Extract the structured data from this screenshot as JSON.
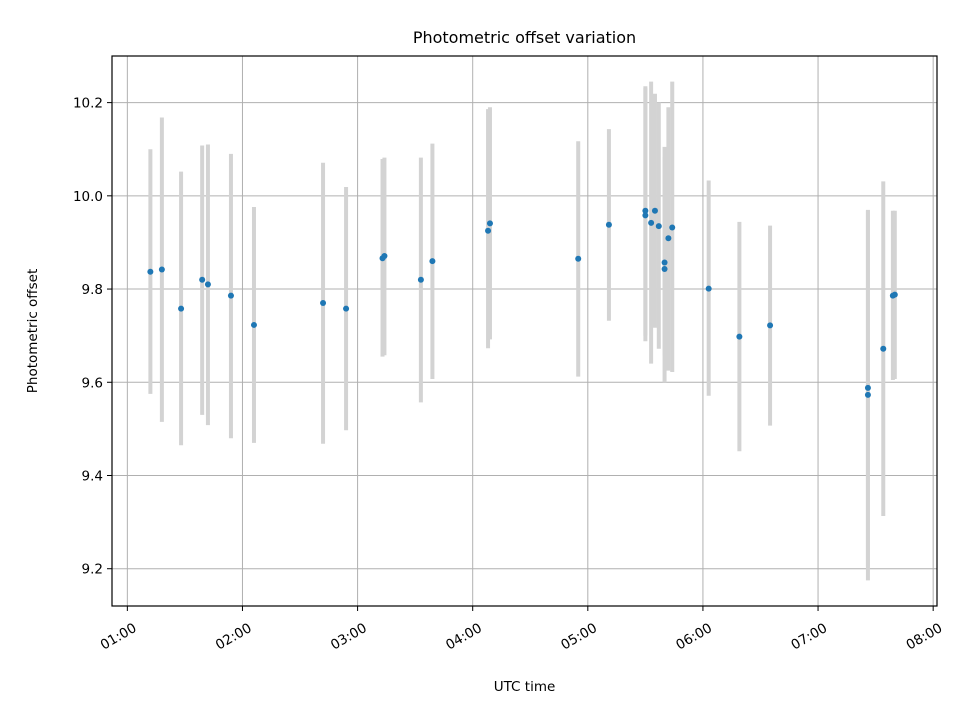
{
  "chart_data": {
    "type": "scatter",
    "title": "Photometric offset variation",
    "xlabel": "UTC time",
    "ylabel": "Photometric offset",
    "xlim": [
      "00:52",
      "08:02"
    ],
    "ylim": [
      9.12,
      10.3
    ],
    "x_ticks": [
      "01:00",
      "02:00",
      "03:00",
      "04:00",
      "05:00",
      "06:00",
      "07:00",
      "08:00"
    ],
    "y_ticks": [
      "9.2",
      "9.4",
      "9.6",
      "9.8",
      "10.0",
      "10.2"
    ],
    "grid": true,
    "colors": {
      "point": "#1f77b4",
      "errorbar": "#d3d3d3",
      "grid": "#b0b0b0"
    },
    "points": [
      {
        "x": "01:12",
        "y": 9.837,
        "ylow": 9.575,
        "yhigh": 10.1
      },
      {
        "x": "01:18",
        "y": 9.842,
        "ylow": 9.515,
        "yhigh": 10.168
      },
      {
        "x": "01:28",
        "y": 9.758,
        "ylow": 9.465,
        "yhigh": 10.052
      },
      {
        "x": "01:39",
        "y": 9.82,
        "ylow": 9.53,
        "yhigh": 10.108
      },
      {
        "x": "01:42",
        "y": 9.81,
        "ylow": 9.508,
        "yhigh": 10.11
      },
      {
        "x": "01:54",
        "y": 9.786,
        "ylow": 9.48,
        "yhigh": 10.09
      },
      {
        "x": "02:06",
        "y": 9.723,
        "ylow": 9.47,
        "yhigh": 9.976
      },
      {
        "x": "02:42",
        "y": 9.77,
        "ylow": 9.468,
        "yhigh": 10.071
      },
      {
        "x": "02:54",
        "y": 9.758,
        "ylow": 9.497,
        "yhigh": 10.019
      },
      {
        "x": "03:13",
        "y": 9.866,
        "ylow": 9.655,
        "yhigh": 10.079
      },
      {
        "x": "03:14",
        "y": 9.871,
        "ylow": 9.658,
        "yhigh": 10.082
      },
      {
        "x": "03:33",
        "y": 9.82,
        "ylow": 9.557,
        "yhigh": 10.082
      },
      {
        "x": "03:39",
        "y": 9.86,
        "ylow": 9.607,
        "yhigh": 10.112
      },
      {
        "x": "04:08",
        "y": 9.925,
        "ylow": 9.673,
        "yhigh": 10.186
      },
      {
        "x": "04:09",
        "y": 9.941,
        "ylow": 9.692,
        "yhigh": 10.19
      },
      {
        "x": "04:55",
        "y": 9.865,
        "ylow": 9.612,
        "yhigh": 10.117
      },
      {
        "x": "05:11",
        "y": 9.938,
        "ylow": 9.732,
        "yhigh": 10.143
      },
      {
        "x": "05:30",
        "y": 9.958,
        "ylow": 9.688,
        "yhigh": 10.235
      },
      {
        "x": "05:30",
        "y": 9.968,
        "ylow": 9.7,
        "yhigh": 10.231
      },
      {
        "x": "05:33",
        "y": 9.942,
        "ylow": 9.64,
        "yhigh": 10.245
      },
      {
        "x": "05:35",
        "y": 9.968,
        "ylow": 9.717,
        "yhigh": 10.219
      },
      {
        "x": "05:37",
        "y": 9.935,
        "ylow": 9.672,
        "yhigh": 10.2
      },
      {
        "x": "05:40",
        "y": 9.857,
        "ylow": 9.658,
        "yhigh": 10.105
      },
      {
        "x": "05:40",
        "y": 9.843,
        "ylow": 9.6,
        "yhigh": 10.082
      },
      {
        "x": "05:42",
        "y": 9.909,
        "ylow": 9.625,
        "yhigh": 10.19
      },
      {
        "x": "05:44",
        "y": 9.932,
        "ylow": 9.622,
        "yhigh": 10.245
      },
      {
        "x": "06:03",
        "y": 9.801,
        "ylow": 9.571,
        "yhigh": 10.033
      },
      {
        "x": "06:19",
        "y": 9.698,
        "ylow": 9.452,
        "yhigh": 9.944
      },
      {
        "x": "06:35",
        "y": 9.722,
        "ylow": 9.507,
        "yhigh": 9.936
      },
      {
        "x": "07:26",
        "y": 9.588,
        "ylow": 9.205,
        "yhigh": 9.97
      },
      {
        "x": "07:26",
        "y": 9.573,
        "ylow": 9.175,
        "yhigh": 9.968
      },
      {
        "x": "07:34",
        "y": 9.672,
        "ylow": 9.313,
        "yhigh": 10.031
      },
      {
        "x": "07:39",
        "y": 9.786,
        "ylow": 9.605,
        "yhigh": 9.968
      },
      {
        "x": "07:40",
        "y": 9.788,
        "ylow": 9.607,
        "yhigh": 9.968
      }
    ]
  }
}
